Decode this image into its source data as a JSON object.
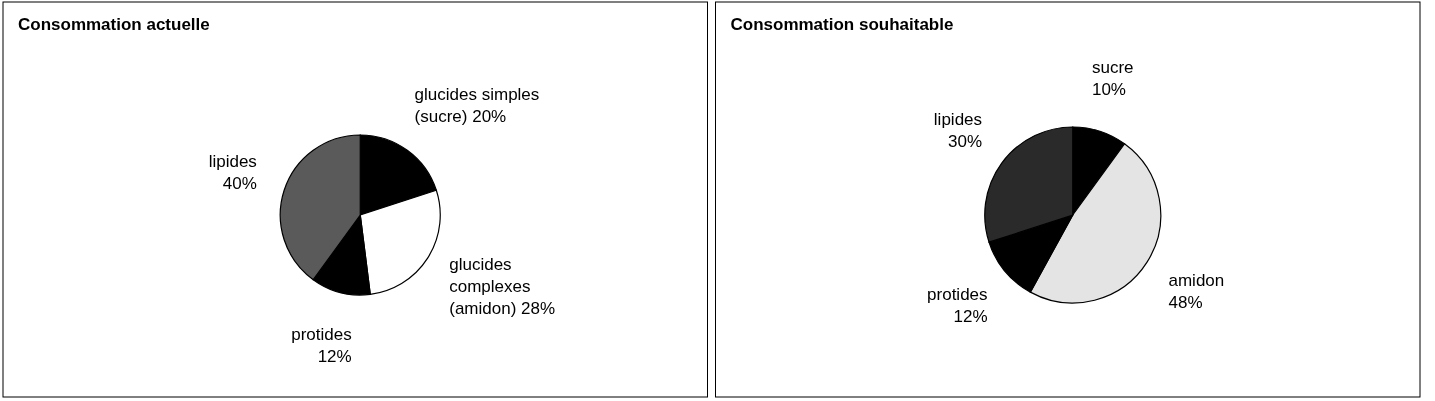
{
  "chart_data": [
    {
      "type": "pie",
      "title": "Consommation actuelle",
      "categories": [
        "glucides simples (sucre)",
        "glucides complexes (amidon)",
        "protides",
        "lipides"
      ],
      "values": [
        20,
        28,
        12,
        40
      ],
      "value_labels": [
        "20%",
        "28%",
        "12%",
        "40%"
      ],
      "colors": [
        "#000000",
        "#ffffff",
        "#000000",
        "#5a5a5a"
      ]
    },
    {
      "type": "pie",
      "title": "Consommation souhaitable",
      "categories": [
        "sucre",
        "amidon",
        "protides",
        "lipides"
      ],
      "values": [
        10,
        48,
        12,
        30
      ],
      "value_labels": [
        "10%",
        "48%",
        "12%",
        "30%"
      ],
      "colors": [
        "#000000",
        "#e4e4e4",
        "#000000",
        "#2a2a2a"
      ]
    }
  ]
}
